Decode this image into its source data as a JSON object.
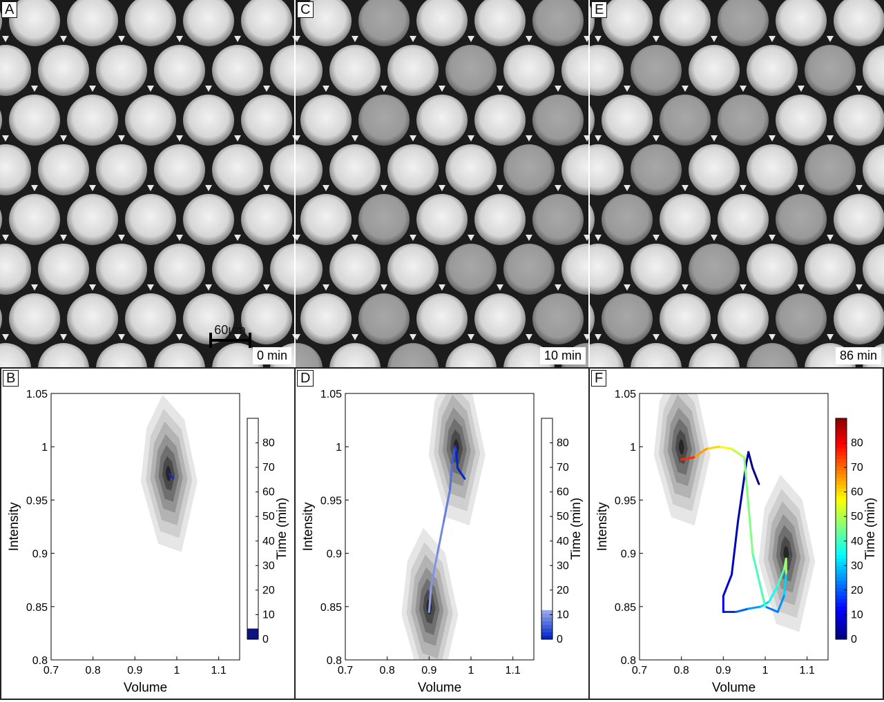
{
  "figure": {
    "panels": [
      {
        "label": "A",
        "time": "0 min",
        "scale_bar": "60µm"
      },
      {
        "label": "C",
        "time": "10 min"
      },
      {
        "label": "E",
        "time": "86 min"
      }
    ],
    "plot_labels": [
      "B",
      "D",
      "F"
    ]
  },
  "chart_data": [
    {
      "type": "contour",
      "panel": "B",
      "xlabel": "Volume",
      "ylabel": "Intensity",
      "colorbar_label": "Time (min)",
      "xlim": [
        0.7,
        1.15
      ],
      "ylim": [
        0.8,
        1.05
      ],
      "xticks": [
        "0.7",
        "0.8",
        "0.9",
        "1",
        "1.1"
      ],
      "yticks": [
        "0.8",
        "0.85",
        "0.9",
        "0.95",
        "1",
        "1.05"
      ],
      "colorbar_ticks": [
        "0",
        "10",
        "20",
        "30",
        "40",
        "50",
        "60",
        "70",
        "80"
      ],
      "colorbar_range": [
        0,
        90
      ],
      "colorbar_style": "white-to-navy",
      "peaks": [
        {
          "x": 0.98,
          "y": 0.975
        }
      ],
      "trajectory": {
        "x": [
          0.98,
          0.99
        ],
        "y": 0.975,
        "t": [
          0,
          1
        ]
      }
    },
    {
      "type": "contour",
      "panel": "D",
      "xlabel": "Volume",
      "ylabel": "Intensity",
      "colorbar_label": "Time (min)",
      "xlim": [
        0.7,
        1.15
      ],
      "ylim": [
        0.8,
        1.05
      ],
      "xticks": [
        "0.7",
        "0.8",
        "0.9",
        "1",
        "1.1"
      ],
      "yticks": [
        "0.8",
        "0.85",
        "0.9",
        "0.95",
        "1",
        "1.05"
      ],
      "colorbar_ticks": [
        "0",
        "10",
        "20",
        "30",
        "40",
        "50",
        "60",
        "70",
        "80"
      ],
      "colorbar_range": [
        0,
        90
      ],
      "colorbar_style": "blue-to-white",
      "peaks": [
        {
          "x": 0.9,
          "y": 0.85
        },
        {
          "x": 0.965,
          "y": 1.0
        }
      ],
      "trajectory": {
        "x": [
          0.9,
          0.905,
          0.92,
          0.935,
          0.95,
          0.955,
          0.962,
          0.965,
          0.968,
          0.985
        ],
        "y": [
          0.845,
          0.87,
          0.9,
          0.93,
          0.96,
          0.985,
          1.0,
          0.995,
          0.98,
          0.97
        ],
        "t": [
          10,
          9,
          8,
          7,
          6,
          4,
          2,
          0,
          0,
          0
        ]
      }
    },
    {
      "type": "contour",
      "panel": "F",
      "xlabel": "Volume",
      "ylabel": "Intensity",
      "colorbar_label": "Time (min)",
      "xlim": [
        0.7,
        1.15
      ],
      "ylim": [
        0.8,
        1.05
      ],
      "xticks": [
        "0.7",
        "0.8",
        "0.9",
        "1",
        "1.1"
      ],
      "yticks": [
        "0.8",
        "0.85",
        "0.9",
        "0.95",
        "1",
        "1.05"
      ],
      "colorbar_ticks": [
        "0",
        "10",
        "20",
        "30",
        "40",
        "50",
        "60",
        "70",
        "80"
      ],
      "colorbar_range": [
        0,
        90
      ],
      "colorbar_style": "jet",
      "peaks": [
        {
          "x": 0.8,
          "y": 1.0
        },
        {
          "x": 1.05,
          "y": 0.9
        }
      ],
      "trajectory": {
        "x": [
          0.985,
          0.97,
          0.96,
          0.955,
          0.935,
          0.92,
          0.9,
          0.9,
          0.905,
          0.93,
          0.96,
          0.99,
          1.01,
          1.03,
          1.045,
          1.05,
          1.05,
          1.045,
          1.03,
          1.0,
          0.97,
          0.95,
          0.92,
          0.89,
          0.86,
          0.83,
          0.8
        ],
        "y": [
          0.965,
          0.98,
          0.995,
          0.985,
          0.93,
          0.88,
          0.86,
          0.845,
          0.845,
          0.845,
          0.848,
          0.85,
          0.855,
          0.87,
          0.885,
          0.895,
          0.88,
          0.86,
          0.845,
          0.85,
          0.9,
          0.99,
          0.998,
          1.0,
          0.998,
          0.99,
          0.988
        ],
        "t": [
          0,
          1,
          2,
          4,
          6,
          8,
          10,
          12,
          15,
          20,
          25,
          30,
          35,
          40,
          45,
          48,
          30,
          24,
          22,
          40,
          45,
          50,
          55,
          60,
          65,
          75,
          86
        ]
      }
    }
  ]
}
